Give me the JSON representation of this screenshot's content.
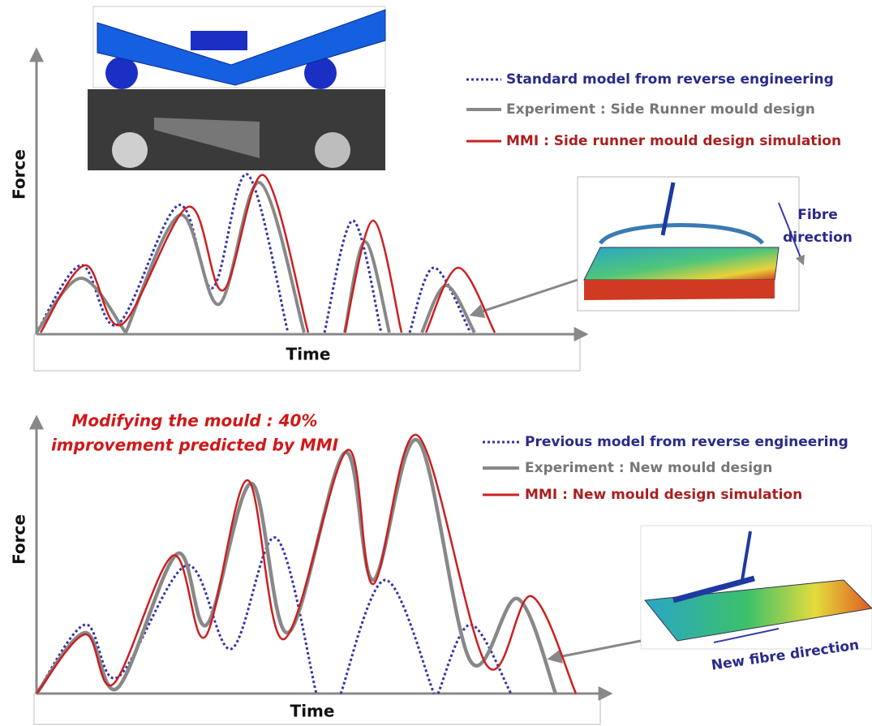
{
  "panels": [
    {
      "axis_labels": {
        "y": "Force",
        "x": "Time"
      },
      "legend": [
        "Standard model from reverse engineering",
        "Experiment : Side Runner mould design",
        "MMI : Side runner mould design simulation"
      ],
      "annotation": [
        "Fibre",
        "direction"
      ]
    },
    {
      "title": [
        "Modifying the mould : 40%",
        "improvement predicted by MMI"
      ],
      "axis_labels": {
        "y": "Force",
        "x": "Time"
      },
      "legend": [
        "Previous model from reverse engineering",
        "Experiment : New mould design",
        "MMI : New mould design simulation"
      ],
      "annotation": [
        "New fibre direction"
      ]
    }
  ]
}
